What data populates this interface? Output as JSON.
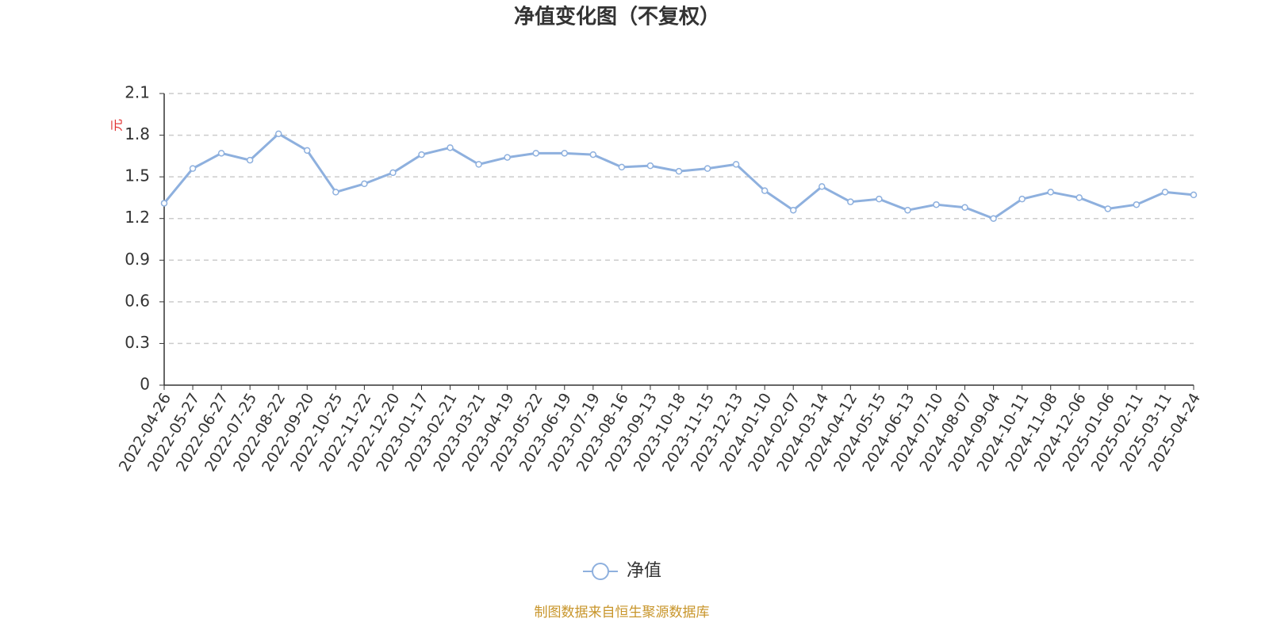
{
  "chart_data": {
    "type": "line",
    "title": "净值变化图（不复权）",
    "y_axis_label": "元",
    "categories": [
      "2022-04-26",
      "2022-05-27",
      "2022-06-27",
      "2022-07-25",
      "2022-08-22",
      "2022-09-20",
      "2022-10-25",
      "2022-11-22",
      "2022-12-20",
      "2023-01-17",
      "2023-02-21",
      "2023-03-21",
      "2023-04-19",
      "2023-05-22",
      "2023-06-19",
      "2023-07-19",
      "2023-08-16",
      "2023-09-13",
      "2023-10-18",
      "2023-11-15",
      "2023-12-13",
      "2024-01-10",
      "2024-02-07",
      "2024-03-14",
      "2024-04-12",
      "2024-05-15",
      "2024-06-13",
      "2024-07-10",
      "2024-08-07",
      "2024-09-04",
      "2024-10-11",
      "2024-11-08",
      "2024-12-06",
      "2025-01-06",
      "2025-02-11",
      "2025-03-11",
      "2025-04-24"
    ],
    "series": [
      {
        "name": "净值",
        "color": "#8eb0de",
        "values": [
          1.31,
          1.56,
          1.67,
          1.62,
          1.81,
          1.69,
          1.39,
          1.45,
          1.53,
          1.66,
          1.71,
          1.59,
          1.64,
          1.67,
          1.67,
          1.66,
          1.57,
          1.58,
          1.54,
          1.56,
          1.59,
          1.4,
          1.26,
          1.43,
          1.32,
          1.34,
          1.26,
          1.3,
          1.28,
          1.2,
          1.34,
          1.39,
          1.35,
          1.27,
          1.3,
          1.39,
          1.37
        ]
      }
    ],
    "ylim": [
      0,
      2.1
    ],
    "yticks": [
      0,
      0.3,
      0.6,
      0.9,
      1.2,
      1.5,
      1.8,
      2.1
    ],
    "grid": true,
    "legend": "bottom",
    "source": "制图数据来自恒生聚源数据库"
  }
}
